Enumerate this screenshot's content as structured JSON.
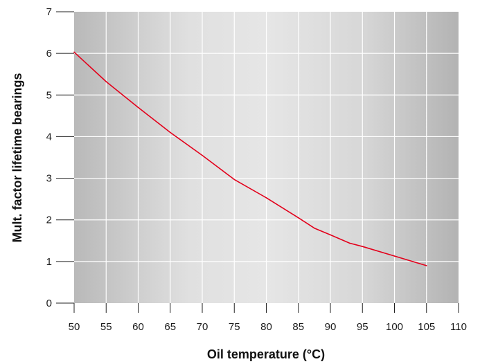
{
  "chart_data": {
    "type": "line",
    "title": "",
    "xlabel": "Oil temperature (°C)",
    "ylabel": "Mult. factor lifetime bearings",
    "xlim": [
      50,
      110
    ],
    "ylim": [
      0,
      7
    ],
    "x_ticks": [
      "50",
      "55",
      "60",
      "65",
      "70",
      "75",
      "80",
      "85",
      "90",
      "95",
      "100",
      "105",
      "110"
    ],
    "y_ticks": [
      "0",
      "1",
      "2",
      "3",
      "4",
      "5",
      "6",
      "7"
    ],
    "grid": true,
    "legend": "none",
    "background": "gradient gray",
    "series": [
      {
        "color": "#e3001b",
        "x": [
          50,
          55,
          60,
          65,
          70,
          75,
          80,
          85,
          87.5,
          90,
          93,
          95,
          100,
          105
        ],
        "y": [
          6.03,
          5.32,
          4.7,
          4.1,
          3.55,
          2.97,
          2.53,
          2.05,
          1.8,
          1.64,
          1.44,
          1.36,
          1.13,
          0.9
        ]
      }
    ]
  }
}
